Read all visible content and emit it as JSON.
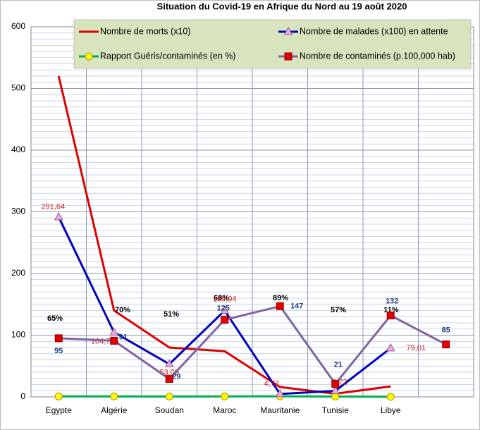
{
  "chart_data": {
    "type": "line",
    "title": "Situation du Covid-19 en Afrique du Nord au 19 août 2020",
    "categories": [
      "Egypte",
      "Algérie",
      "Soudan",
      "Maroc",
      "Mauritanie",
      "Tunisie",
      "Libye",
      null
    ],
    "ylim": [
      0,
      600
    ],
    "yticks": [
      0,
      100,
      200,
      300,
      400,
      500,
      600
    ],
    "grid": true,
    "series": [
      {
        "name": "Nombre de morts (x10)",
        "color": "#e00000",
        "values": [
          520,
          140,
          80,
          74,
          16,
          5,
          17,
          null
        ]
      },
      {
        "name": "Nombre de malades (x100) en attente",
        "color": "#0000c0",
        "marker_color": "#f4a6d6",
        "values": [
          291.64,
          104.74,
          53.09,
          139.94,
          4.77,
          9.72,
          79.01,
          null
        ],
        "value_labels": [
          "291,64",
          "104,74",
          "53,09",
          "139,94",
          "4,77",
          "9,72",
          "79,01",
          null
        ]
      },
      {
        "name": "Rapport Guéris/contaminés (en %)",
        "color": "#00b050",
        "marker_color": "#ffff00",
        "values": [
          0.65,
          0.7,
          0.51,
          0.68,
          0.89,
          0.57,
          0.11,
          null
        ],
        "value_labels": [
          "65%",
          "70%",
          "51%",
          "68%",
          "89%",
          "57%",
          "11%",
          null
        ]
      },
      {
        "name": "Nombre de contaminés (p.100,000 hab)",
        "color": "#8064a2",
        "marker_color": "#e00000",
        "values": [
          95,
          91,
          29,
          125,
          147,
          21,
          132,
          85
        ]
      }
    ]
  }
}
